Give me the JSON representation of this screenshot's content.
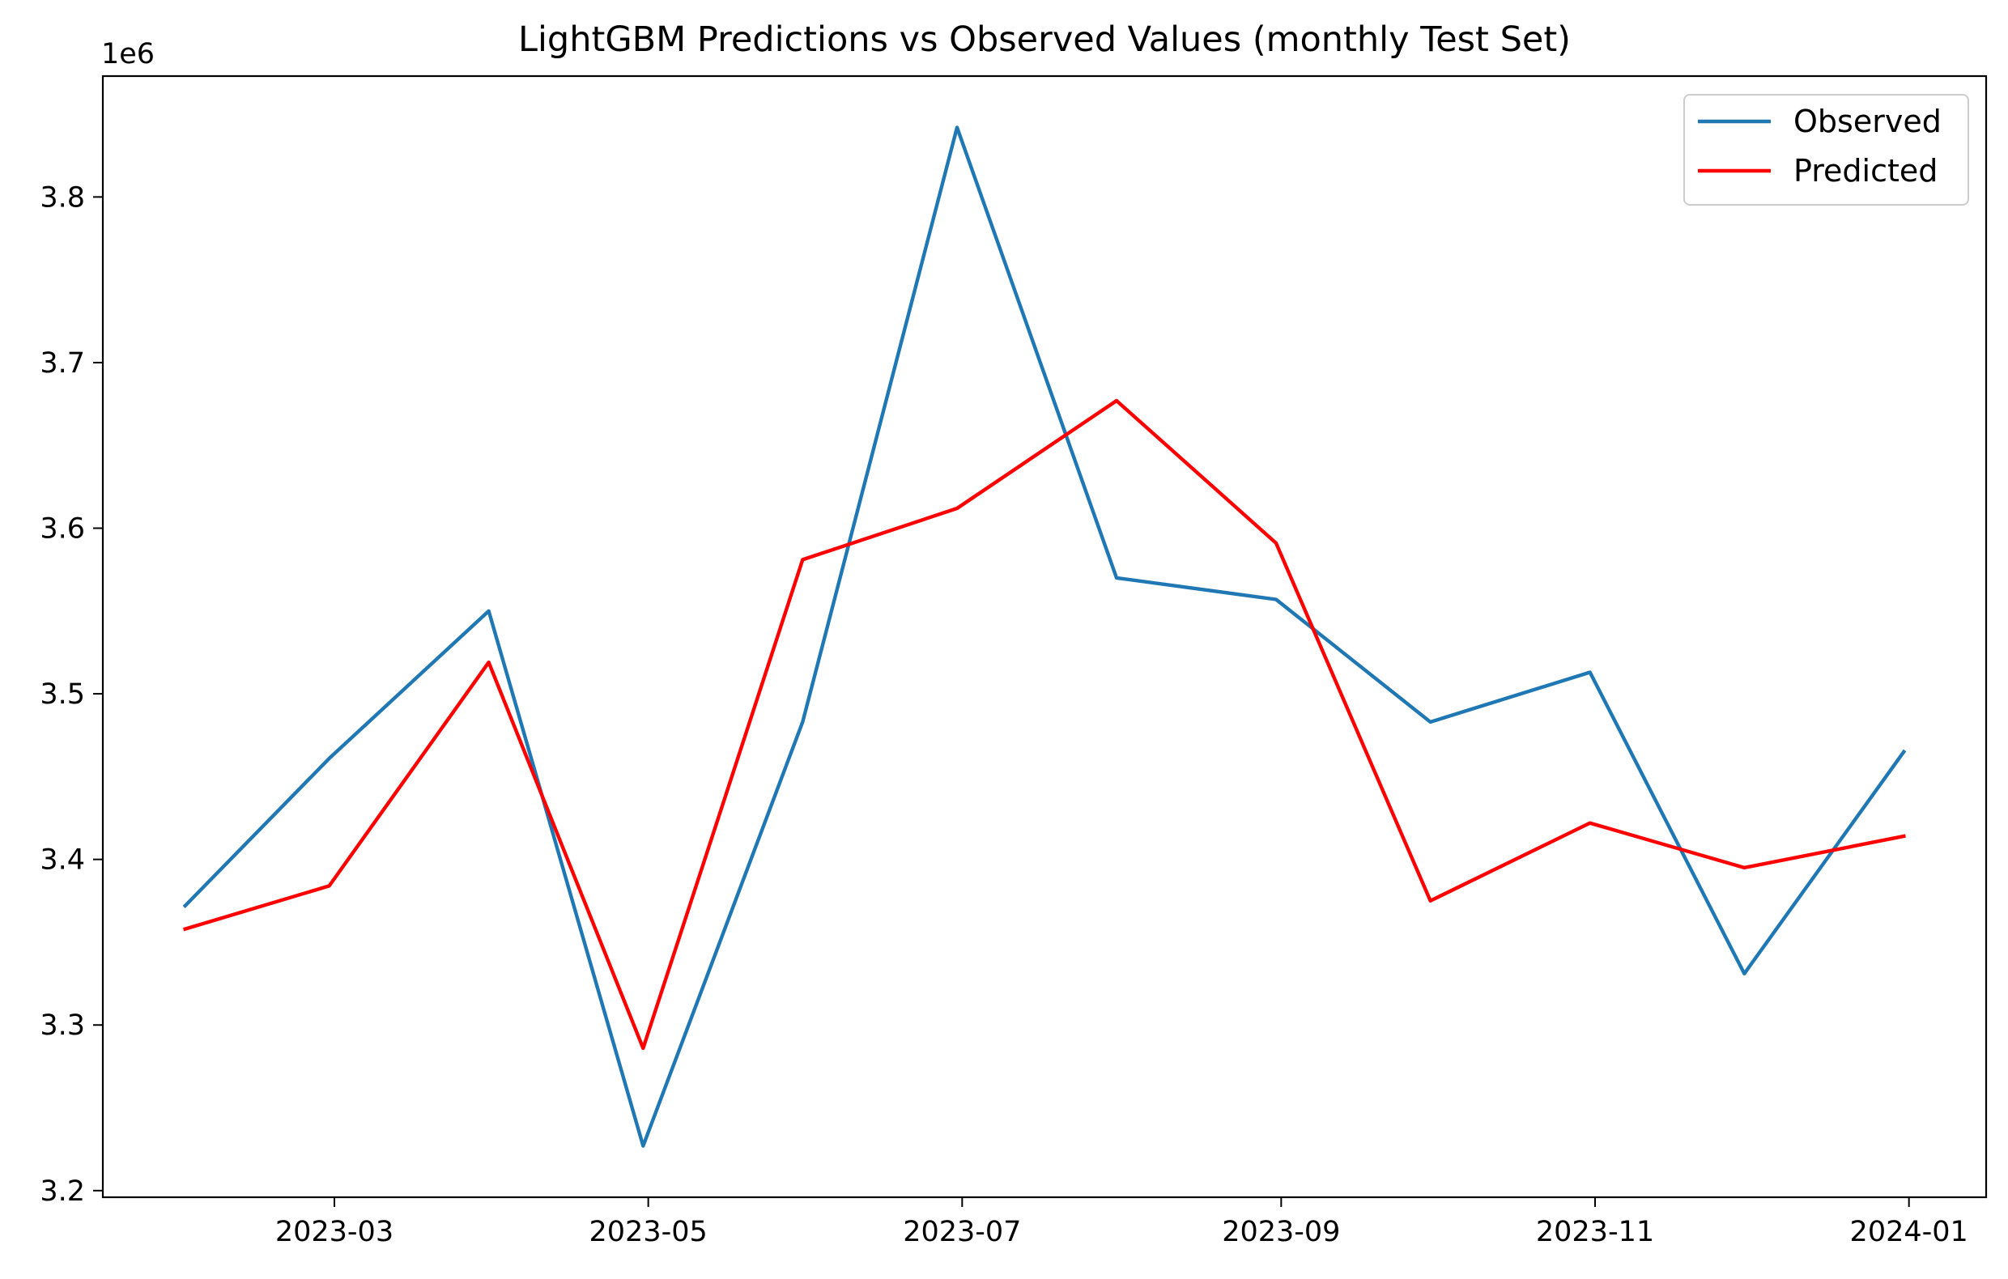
{
  "chart_data": {
    "type": "line",
    "title": "LightGBM Predictions vs Observed Values (monthly Test Set)",
    "xlabel": "",
    "ylabel": "",
    "y_offset_label": "1e6",
    "x": [
      "2023-01-31",
      "2023-02-28",
      "2023-03-31",
      "2023-04-30",
      "2023-05-31",
      "2023-06-30",
      "2023-07-31",
      "2023-08-31",
      "2023-09-30",
      "2023-10-31",
      "2023-11-30",
      "2023-12-31"
    ],
    "series": [
      {
        "name": "Observed",
        "color": "#1f77b4",
        "values": [
          3372000,
          3461000,
          3550000,
          3227000,
          3483000,
          3842000,
          3570000,
          3557000,
          3483000,
          3513000,
          3331000,
          3465000
        ]
      },
      {
        "name": "Predicted",
        "color": "#ff0000",
        "values": [
          3358000,
          3384000,
          3519000,
          3286000,
          3581000,
          3612000,
          3677000,
          3591000,
          3375000,
          3422000,
          3395000,
          3414000
        ]
      }
    ],
    "x_ticks": [
      "2023-03",
      "2023-05",
      "2023-07",
      "2023-09",
      "2023-11",
      "2024-01"
    ],
    "x_tick_dates": [
      "2023-03-01",
      "2023-05-01",
      "2023-07-01",
      "2023-09-01",
      "2023-11-01",
      "2024-01-01"
    ],
    "y_ticks": [
      "3.2",
      "3.3",
      "3.4",
      "3.5",
      "3.6",
      "3.7",
      "3.8"
    ],
    "y_tick_values": [
      3200000,
      3300000,
      3400000,
      3500000,
      3600000,
      3700000,
      3800000
    ],
    "xlim": [
      "2023-01-15",
      "2024-01-16"
    ],
    "ylim": [
      3196000,
      3873000
    ],
    "grid": false,
    "legend": "top-right"
  }
}
